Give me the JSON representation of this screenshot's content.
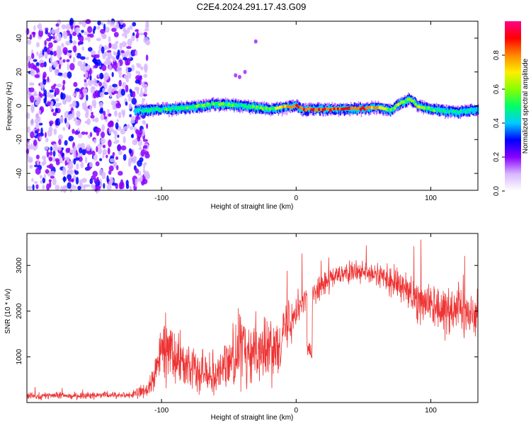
{
  "figure": {
    "title": "C2E4.2024.291.17.43.G09"
  },
  "chart_data": [
    {
      "type": "heatmap",
      "xlabel": "Height of straight line (km)",
      "ylabel": "Frequency (Hz)",
      "xlim": [
        -200,
        135
      ],
      "ylim": [
        -50,
        50
      ],
      "xticks": [
        -100,
        0,
        100
      ],
      "yticks": [
        -40,
        -20,
        0,
        20,
        40
      ],
      "colorbar": {
        "label": "Normalized spectral amplitude",
        "range": [
          0.0,
          1.0
        ],
        "ticks": [
          0.0,
          0.2,
          0.4,
          0.6,
          0.8
        ],
        "tick_labels": [
          "0.0",
          "0.2",
          "0.4",
          "0.6",
          "0.8"
        ],
        "colors": [
          "#ffffff",
          "#d8b8ff",
          "#8800ff",
          "#0000ff",
          "#00ccff",
          "#00ff66",
          "#88ff00",
          "#ffee00",
          "#ff8800",
          "#ff0000",
          "#ff0088"
        ]
      },
      "signal_ridge": {
        "x": [
          -120,
          -100,
          -80,
          -60,
          -40,
          -20,
          0,
          5,
          20,
          40,
          60,
          70,
          78,
          85,
          90,
          100,
          110,
          120,
          135
        ],
        "y": [
          -3,
          -2,
          -1,
          1,
          0,
          -2,
          0,
          -2,
          -2,
          -2,
          -1,
          -3,
          2,
          4,
          0,
          -2,
          -3,
          -4,
          -2
        ],
        "amplitude": [
          0.45,
          0.5,
          0.5,
          0.55,
          0.5,
          0.55,
          0.85,
          0.8,
          0.85,
          0.85,
          0.8,
          0.6,
          0.6,
          0.55,
          0.6,
          0.5,
          0.45,
          0.45,
          0.4
        ]
      },
      "noise_region_x": [
        -200,
        -115
      ]
    },
    {
      "type": "line",
      "xlabel": "Height of straight line (km)",
      "ylabel": "SNR (10 * v/v)",
      "xlim": [
        -200,
        135
      ],
      "ylim": [
        0,
        3700
      ],
      "xticks": [
        -100,
        0,
        100
      ],
      "yticks": [
        1000,
        2000,
        3000
      ],
      "color": "#ee3333",
      "envelope": {
        "x": [
          -200,
          -160,
          -120,
          -110,
          -105,
          -100,
          -95,
          -90,
          -80,
          -70,
          -60,
          -50,
          -40,
          -35,
          -30,
          -20,
          -10,
          0,
          10,
          20,
          30,
          40,
          50,
          60,
          70,
          80,
          90,
          100,
          110,
          120,
          130,
          135
        ],
        "center": [
          150,
          150,
          170,
          300,
          600,
          1100,
          1300,
          1000,
          800,
          700,
          650,
          900,
          1200,
          900,
          1300,
          1100,
          1500,
          2100,
          2400,
          2600,
          2750,
          2850,
          2850,
          2800,
          2650,
          2500,
          2300,
          2150,
          2100,
          2050,
          1950,
          1950
        ],
        "spread": [
          80,
          80,
          90,
          200,
          350,
          700,
          800,
          600,
          500,
          500,
          500,
          700,
          900,
          800,
          800,
          700,
          700,
          500,
          350,
          300,
          250,
          250,
          250,
          300,
          350,
          450,
          550,
          600,
          700,
          700,
          600,
          500
        ]
      }
    }
  ]
}
